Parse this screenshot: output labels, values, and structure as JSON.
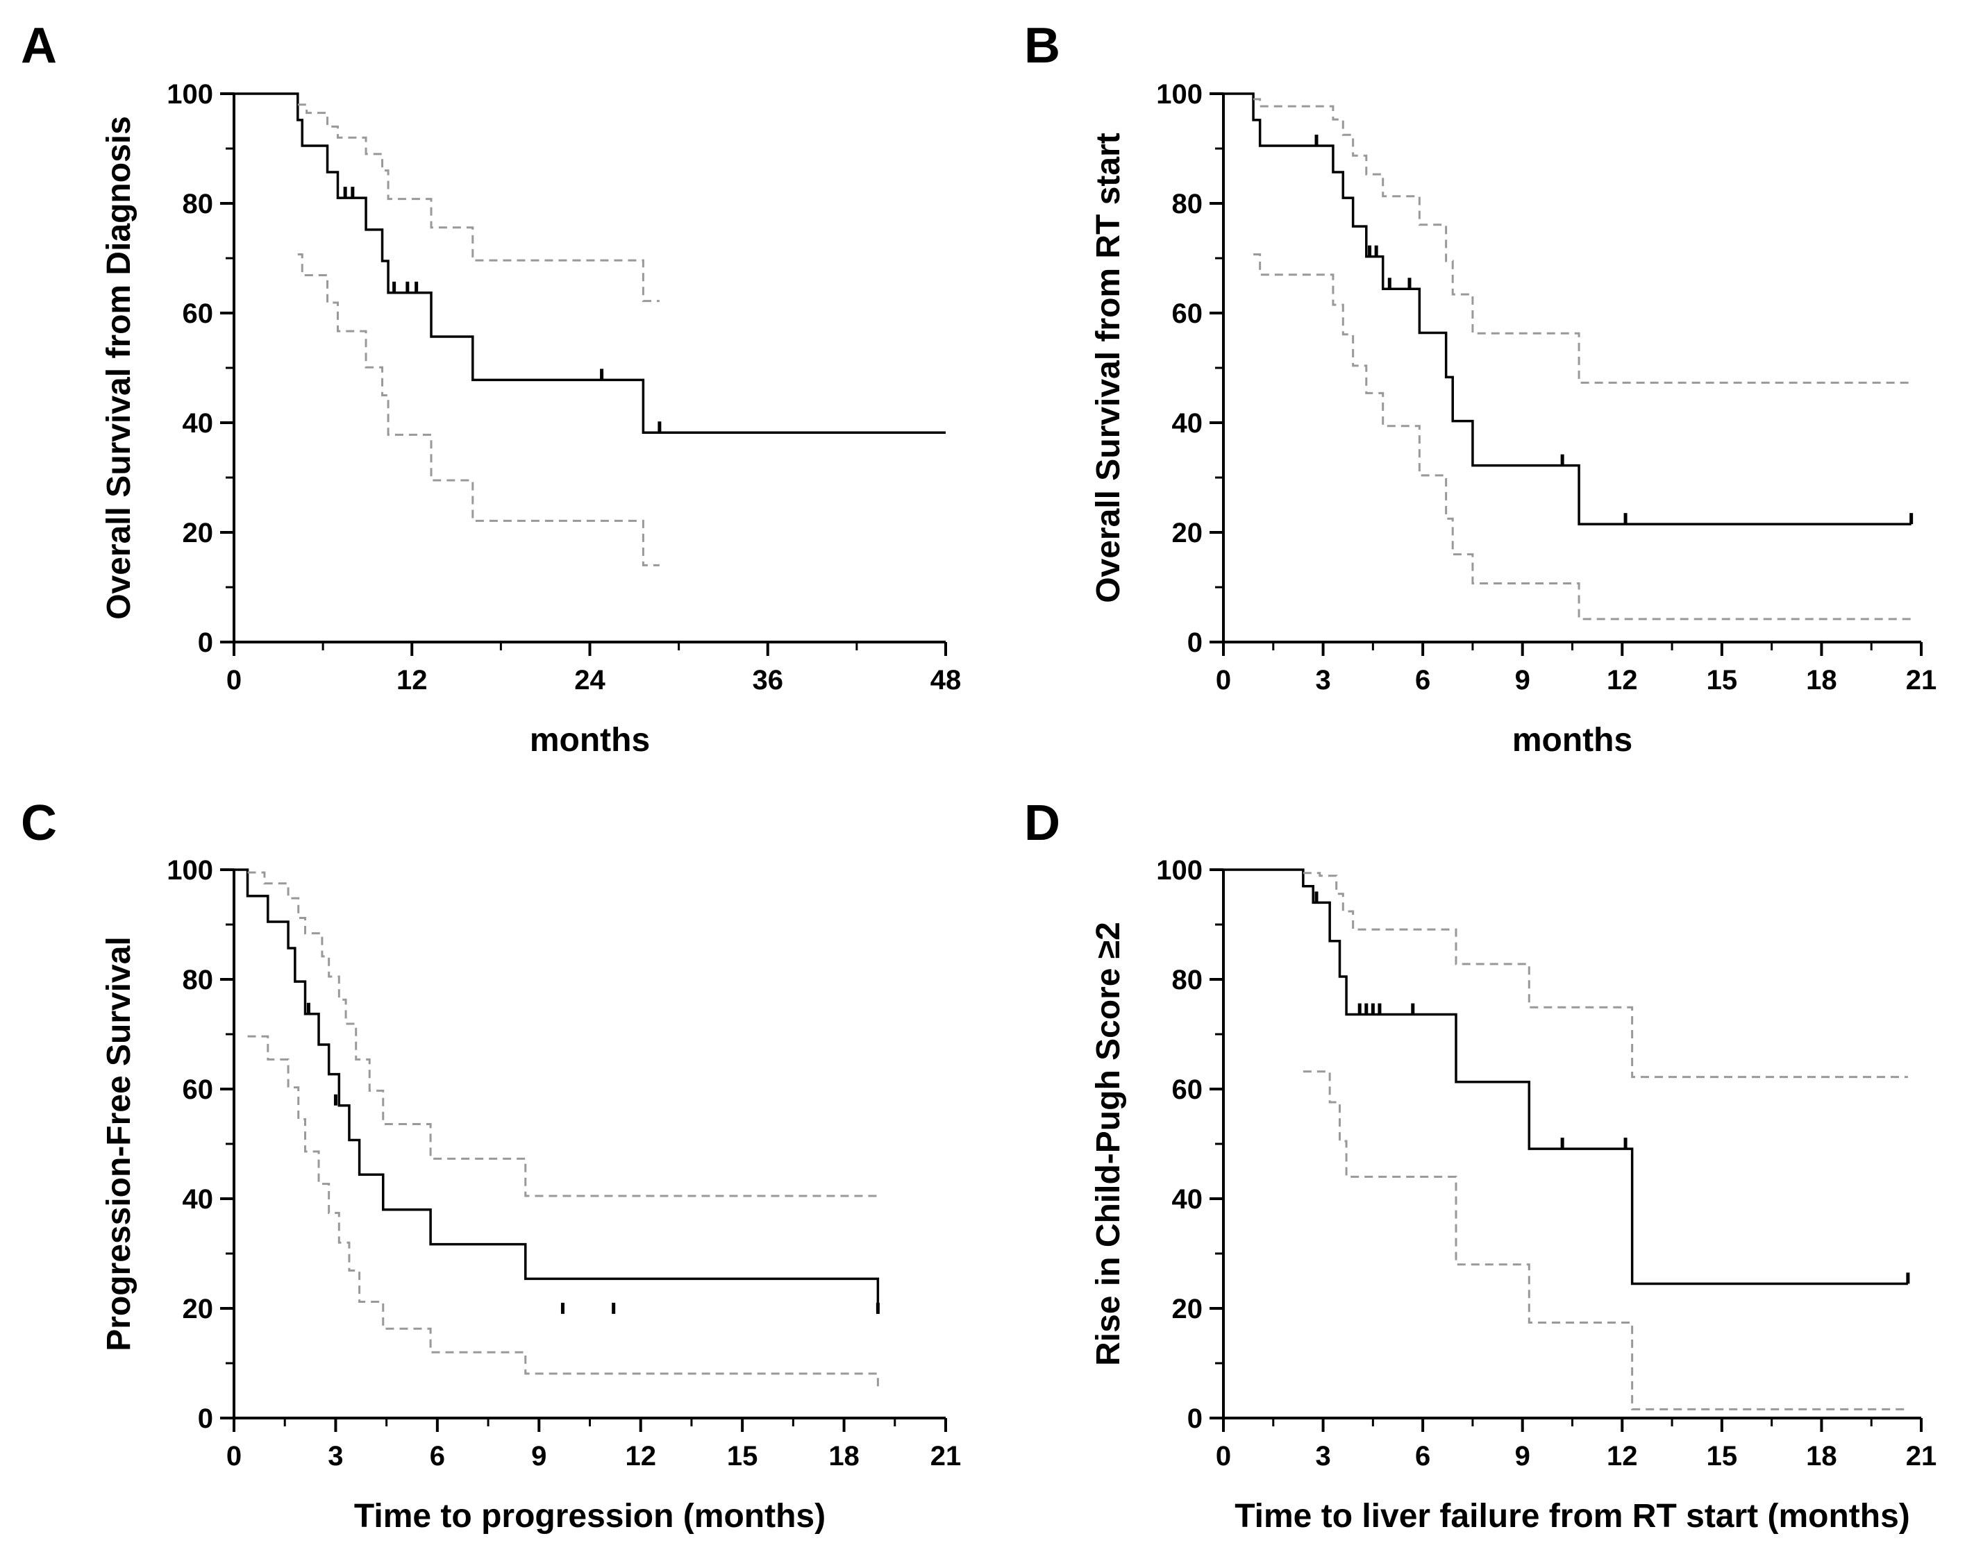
{
  "chart_data": [
    {
      "panel": "A",
      "type": "line",
      "step": true,
      "ylabel": "Overall Survival from Diagnosis",
      "xlabel": "months",
      "xlim": [
        0,
        48
      ],
      "ylim": [
        0,
        100
      ],
      "xticks": [
        0,
        12,
        24,
        36,
        48
      ],
      "yticks": [
        0,
        20,
        40,
        60,
        80,
        100
      ],
      "xtick_labels": [
        "0",
        "12",
        "24",
        "36",
        "48"
      ],
      "ytick_labels": [
        "0",
        "20",
        "40",
        "60",
        "80",
        "100"
      ],
      "grid": false,
      "series": [
        {
          "role": "estimate",
          "color": "#000000",
          "dashed": false,
          "x": [
            0,
            4.3,
            4.6,
            6.3,
            7.0,
            8.9,
            10.0,
            10.4,
            13.3,
            16.1,
            27.6,
            48.0
          ],
          "y": [
            100,
            95.2,
            90.5,
            85.7,
            81.0,
            75.2,
            69.5,
            63.7,
            55.7,
            47.8,
            38.2,
            38.2
          ],
          "censored_x": [
            7.5,
            8.0,
            10.8,
            11.7,
            12.3,
            24.8,
            28.7
          ],
          "censored_y": [
            81.0,
            81.0,
            63.7,
            63.7,
            63.7,
            47.8,
            38.2
          ]
        },
        {
          "role": "upper",
          "color": "#999999",
          "dashed": true,
          "x": [
            4.3,
            4.9,
            6.3,
            7.0,
            8.9,
            10.0,
            10.4,
            13.3,
            16.1,
            27.6,
            28.7
          ],
          "y": [
            98.0,
            96.5,
            94.0,
            92.0,
            89.0,
            86.0,
            80.8,
            75.6,
            69.6,
            62.2,
            62.2
          ]
        },
        {
          "role": "lower",
          "color": "#999999",
          "dashed": true,
          "x": [
            4.3,
            4.6,
            6.3,
            7.0,
            8.9,
            10.0,
            10.4,
            13.3,
            16.1,
            27.6,
            28.7
          ],
          "y": [
            70.7,
            66.9,
            61.9,
            56.7,
            50.1,
            45.0,
            37.8,
            29.5,
            22.1,
            14.0,
            14.0
          ]
        }
      ]
    },
    {
      "panel": "B",
      "type": "line",
      "step": true,
      "ylabel": "Overall Survival from RT start",
      "xlabel": "months",
      "xlim": [
        0,
        21
      ],
      "ylim": [
        0,
        100
      ],
      "xticks": [
        0,
        3,
        6,
        9,
        12,
        15,
        18,
        21
      ],
      "yticks": [
        0,
        20,
        40,
        60,
        80,
        100
      ],
      "xtick_labels": [
        "0",
        "3",
        "6",
        "9",
        "12",
        "15",
        "18",
        "21"
      ],
      "ytick_labels": [
        "0",
        "20",
        "40",
        "60",
        "80",
        "100"
      ],
      "grid": false,
      "series": [
        {
          "role": "estimate",
          "color": "#000000",
          "dashed": false,
          "x": [
            0,
            0.9,
            1.1,
            3.3,
            3.6,
            3.9,
            4.3,
            4.8,
            5.9,
            6.7,
            6.9,
            7.5,
            10.7,
            20.7
          ],
          "y": [
            100,
            95.2,
            90.5,
            85.7,
            81.0,
            75.8,
            70.3,
            64.4,
            56.4,
            48.3,
            40.3,
            32.2,
            21.5,
            21.5
          ],
          "censored_x": [
            2.8,
            4.4,
            4.6,
            5.0,
            5.6,
            10.2,
            12.1,
            20.7
          ],
          "censored_y": [
            90.5,
            70.3,
            70.3,
            64.4,
            64.4,
            32.2,
            21.5,
            21.5
          ]
        },
        {
          "role": "upper",
          "color": "#999999",
          "dashed": true,
          "x": [
            0.9,
            1.1,
            3.3,
            3.6,
            3.9,
            4.3,
            4.8,
            5.9,
            6.7,
            6.9,
            7.5,
            10.7,
            20.7
          ],
          "y": [
            99.0,
            97.7,
            95.3,
            92.5,
            88.7,
            85.3,
            81.3,
            76.1,
            69.5,
            63.4,
            56.3,
            47.3,
            47.3
          ]
        },
        {
          "role": "lower",
          "color": "#999999",
          "dashed": true,
          "x": [
            0.9,
            1.1,
            3.3,
            3.6,
            3.9,
            4.3,
            4.8,
            5.9,
            6.7,
            6.9,
            7.5,
            10.7,
            20.7
          ],
          "y": [
            70.7,
            67.0,
            61.5,
            56.1,
            50.4,
            45.4,
            39.4,
            30.4,
            22.5,
            16.0,
            10.7,
            4.2,
            4.2
          ]
        }
      ]
    },
    {
      "panel": "C",
      "type": "line",
      "step": true,
      "ylabel": "Progression-Free Survival",
      "xlabel": "Time to progression (months)",
      "xlim": [
        0,
        21
      ],
      "ylim": [
        0,
        100
      ],
      "xticks": [
        0,
        3,
        6,
        9,
        12,
        15,
        18,
        21
      ],
      "yticks": [
        0,
        20,
        40,
        60,
        80,
        100
      ],
      "xtick_labels": [
        "0",
        "3",
        "6",
        "9",
        "12",
        "15",
        "18",
        "21"
      ],
      "ytick_labels": [
        "0",
        "20",
        "40",
        "60",
        "80",
        "100"
      ],
      "grid": false,
      "series": [
        {
          "role": "estimate",
          "color": "#000000",
          "dashed": false,
          "x": [
            0,
            0.4,
            1.0,
            1.6,
            1.8,
            2.1,
            2.5,
            2.8,
            3.1,
            3.4,
            3.7,
            4.4,
            5.8,
            8.6,
            19.0
          ],
          "y": [
            100,
            95.2,
            90.5,
            85.7,
            79.6,
            73.7,
            68.1,
            62.7,
            57.0,
            50.7,
            44.4,
            38.0,
            31.7,
            25.4,
            19.0
          ],
          "censored_x": [
            2.2,
            3.0,
            9.7,
            11.2,
            19.0
          ],
          "censored_y": [
            73.7,
            57.0,
            19.0,
            19.0,
            19.0
          ]
        },
        {
          "role": "upper",
          "color": "#999999",
          "dashed": true,
          "x": [
            0.4,
            0.9,
            1.6,
            1.9,
            2.1,
            2.6,
            2.8,
            3.1,
            3.3,
            3.6,
            4.0,
            4.4,
            5.8,
            8.6,
            19.0
          ],
          "y": [
            99.5,
            97.5,
            94.8,
            91.2,
            88.4,
            84.2,
            80.5,
            76.3,
            71.9,
            65.4,
            59.7,
            53.6,
            47.3,
            40.5,
            40.5
          ]
        },
        {
          "role": "lower",
          "color": "#999999",
          "dashed": true,
          "x": [
            0.4,
            1.0,
            1.6,
            1.9,
            2.1,
            2.5,
            2.8,
            3.1,
            3.4,
            3.7,
            4.4,
            5.8,
            8.6,
            19.0
          ],
          "y": [
            69.6,
            65.4,
            60.3,
            54.5,
            48.6,
            42.7,
            37.4,
            32.0,
            26.9,
            21.2,
            16.3,
            12.0,
            8.1,
            4.9
          ]
        }
      ]
    },
    {
      "panel": "D",
      "type": "line",
      "step": true,
      "ylabel": "Rise in Child-Pugh Score ≥2",
      "xlabel": "Time to liver failure from RT start (months)",
      "xlim": [
        0,
        21
      ],
      "ylim": [
        0,
        100
      ],
      "xticks": [
        0,
        3,
        6,
        9,
        12,
        15,
        18,
        21
      ],
      "yticks": [
        0,
        20,
        40,
        60,
        80,
        100
      ],
      "xtick_labels": [
        "0",
        "3",
        "6",
        "9",
        "12",
        "15",
        "18",
        "21"
      ],
      "ytick_labels": [
        "0",
        "20",
        "40",
        "60",
        "80",
        "100"
      ],
      "grid": false,
      "series": [
        {
          "role": "estimate",
          "color": "#000000",
          "dashed": false,
          "x": [
            0,
            2.4,
            2.7,
            3.2,
            3.5,
            3.7,
            7.0,
            9.2,
            12.3,
            20.6
          ],
          "y": [
            100,
            97.0,
            94.0,
            87.0,
            80.5,
            73.6,
            61.3,
            49.1,
            24.5,
            24.5
          ],
          "censored_x": [
            2.8,
            4.1,
            4.3,
            4.5,
            4.7,
            5.7,
            10.2,
            12.1,
            20.6
          ],
          "censored_y": [
            94.0,
            73.6,
            73.6,
            73.6,
            73.6,
            73.6,
            49.1,
            49.1,
            24.5
          ]
        },
        {
          "role": "upper",
          "color": "#999999",
          "dashed": true,
          "x": [
            2.4,
            2.9,
            3.4,
            3.6,
            3.9,
            7.0,
            9.2,
            12.3,
            20.6
          ],
          "y": [
            99.4,
            98.9,
            95.6,
            92.4,
            89.1,
            82.8,
            74.9,
            62.2,
            62.2
          ]
        },
        {
          "role": "lower",
          "color": "#999999",
          "dashed": true,
          "x": [
            2.4,
            3.2,
            3.5,
            3.7,
            7.0,
            9.2,
            12.3,
            20.6
          ],
          "y": [
            63.2,
            57.6,
            50.5,
            44.0,
            28.0,
            17.4,
            1.6,
            1.6
          ]
        }
      ]
    }
  ]
}
